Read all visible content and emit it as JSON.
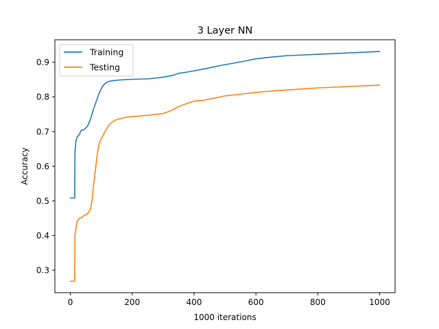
{
  "chart_data": {
    "type": "line",
    "title": "3 Layer NN",
    "xlabel": "1000 iterations",
    "ylabel": "Accuracy",
    "xlim": [
      -50,
      1050
    ],
    "ylim": [
      0.235,
      0.965
    ],
    "xticks": [
      0,
      200,
      400,
      600,
      800,
      1000
    ],
    "yticks": [
      0.3,
      0.4,
      0.5,
      0.6,
      0.7,
      0.8,
      0.9
    ],
    "grid": false,
    "legend_position": "upper-left",
    "series": [
      {
        "name": "Training",
        "color": "#1f77b4",
        "x": [
          0,
          10,
          14,
          15,
          18,
          22,
          28,
          35,
          45,
          55,
          65,
          75,
          85,
          95,
          105,
          115,
          125,
          140,
          160,
          200,
          250,
          300,
          330,
          350,
          380,
          410,
          440,
          470,
          500,
          550,
          600,
          650,
          700,
          750,
          800,
          850,
          900,
          950,
          1000
        ],
        "y": [
          0.508,
          0.508,
          0.508,
          0.64,
          0.672,
          0.685,
          0.69,
          0.703,
          0.706,
          0.715,
          0.735,
          0.765,
          0.79,
          0.815,
          0.832,
          0.841,
          0.845,
          0.847,
          0.849,
          0.851,
          0.852,
          0.857,
          0.862,
          0.868,
          0.872,
          0.877,
          0.882,
          0.888,
          0.893,
          0.901,
          0.91,
          0.915,
          0.919,
          0.921,
          0.923,
          0.925,
          0.927,
          0.929,
          0.931
        ]
      },
      {
        "name": "Testing",
        "color": "#ff7f0e",
        "x": [
          0,
          10,
          14,
          15,
          18,
          22,
          28,
          35,
          45,
          55,
          65,
          70,
          75,
          80,
          85,
          90,
          95,
          105,
          115,
          125,
          135,
          145,
          160,
          180,
          200,
          250,
          300,
          330,
          350,
          380,
          400,
          430,
          450,
          480,
          500,
          550,
          600,
          650,
          700,
          750,
          800,
          850,
          900,
          950,
          1000
        ],
        "y": [
          0.268,
          0.268,
          0.268,
          0.4,
          0.42,
          0.44,
          0.448,
          0.452,
          0.458,
          0.463,
          0.475,
          0.5,
          0.545,
          0.58,
          0.62,
          0.65,
          0.67,
          0.688,
          0.705,
          0.718,
          0.727,
          0.733,
          0.737,
          0.741,
          0.743,
          0.747,
          0.752,
          0.762,
          0.772,
          0.782,
          0.788,
          0.79,
          0.794,
          0.799,
          0.803,
          0.808,
          0.813,
          0.817,
          0.82,
          0.823,
          0.826,
          0.828,
          0.83,
          0.832,
          0.834
        ]
      }
    ]
  }
}
